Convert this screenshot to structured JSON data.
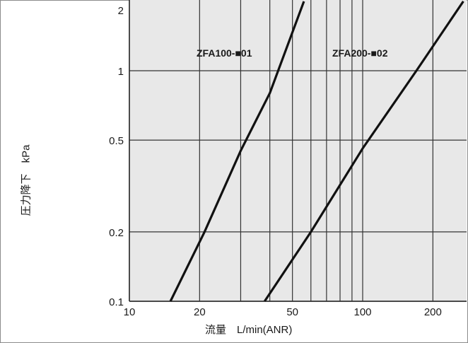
{
  "chart_data": {
    "type": "line",
    "title": "",
    "xlabel": "流量　L/min(ANR)",
    "ylabel": "圧力降下　kPa",
    "x_scale": "log",
    "y_scale": "log",
    "xlim": [
      10,
      280
    ],
    "ylim": [
      0.1,
      2
    ],
    "x_ticks": [
      10,
      20,
      50,
      100,
      200
    ],
    "x_tick_labels": [
      "10",
      "20",
      "50",
      "100",
      "200"
    ],
    "y_ticks": [
      0.1,
      0.2,
      0.5,
      1,
      2
    ],
    "y_tick_labels": [
      "0.1",
      "0.2",
      "0.5",
      "1",
      "2"
    ],
    "grid": true,
    "series": [
      {
        "name": "ZFA100-■01",
        "x": [
          15,
          21,
          30,
          40,
          56
        ],
        "y": [
          0.1,
          0.2,
          0.45,
          0.8,
          2.0
        ]
      },
      {
        "name": "ZFA200-■02",
        "x": [
          38,
          60,
          100,
          170,
          270
        ],
        "y": [
          0.1,
          0.2,
          0.46,
          1.0,
          2.0
        ]
      }
    ],
    "colors": {
      "plot_background": "#e8e8e8",
      "line": "#111111",
      "grid": "#333333"
    }
  }
}
